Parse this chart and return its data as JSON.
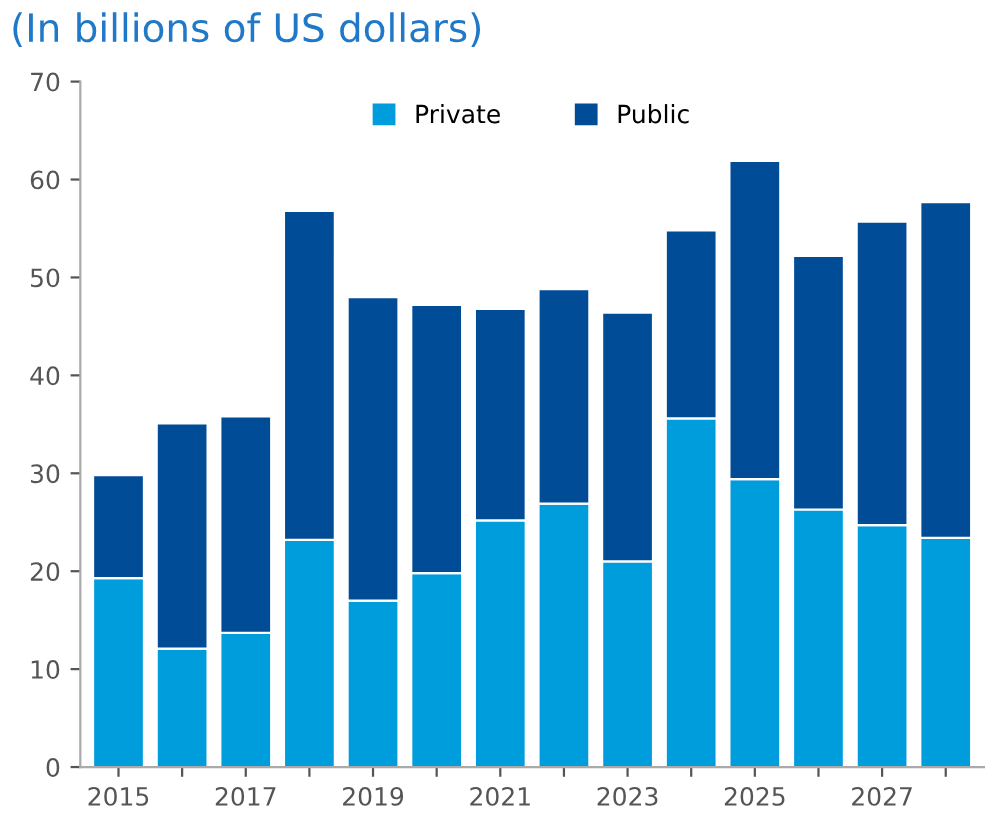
{
  "chart_data": {
    "type": "bar",
    "title": "(In billions of US dollars)",
    "stacked": true,
    "categories": [
      "2015",
      null,
      "2017",
      null,
      "2019",
      null,
      "2021",
      null,
      "2023",
      null,
      "2025",
      null,
      "2027",
      null
    ],
    "series": [
      {
        "name": "Private",
        "color": "#009ddc",
        "values": [
          19.3,
          12.1,
          13.7,
          23.2,
          17.0,
          19.8,
          25.2,
          26.9,
          21.0,
          35.6,
          29.4,
          26.3,
          24.7,
          23.4
        ]
      },
      {
        "name": "Public",
        "color": "#004c97",
        "values": [
          10.5,
          23.0,
          22.1,
          33.6,
          31.0,
          27.4,
          21.6,
          21.9,
          25.4,
          19.2,
          32.5,
          25.9,
          31.0,
          34.3
        ]
      }
    ],
    "ylim": [
      0,
      70
    ],
    "yticks": [
      0,
      10,
      20,
      30,
      40,
      50,
      60,
      70
    ],
    "grid": false,
    "legend": "top"
  }
}
